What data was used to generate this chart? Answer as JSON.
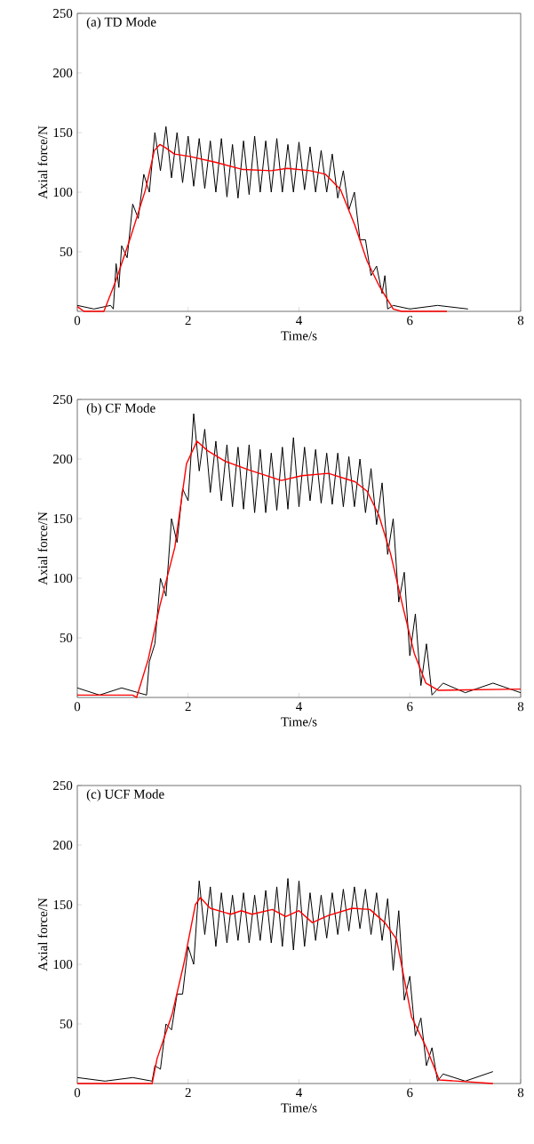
{
  "chart_data": [
    {
      "type": "line",
      "title": "(a) TD Mode",
      "xlabel": "Time/s",
      "ylabel": "Axial force/N",
      "xlim": [
        0,
        8
      ],
      "ylim": [
        0,
        250
      ],
      "xticks": [
        0,
        2,
        4,
        6,
        8
      ],
      "yticks": [
        50,
        100,
        150,
        200,
        250
      ],
      "series": [
        {
          "color": "#000000",
          "x": [
            0,
            0.3,
            0.6,
            0.65,
            0.7,
            0.75,
            0.8,
            0.9,
            1.0,
            1.1,
            1.2,
            1.3,
            1.4,
            1.5,
            1.6,
            1.7,
            1.8,
            1.9,
            2.0,
            2.1,
            2.2,
            2.3,
            2.4,
            2.5,
            2.6,
            2.7,
            2.8,
            2.9,
            3.0,
            3.1,
            3.2,
            3.3,
            3.4,
            3.5,
            3.6,
            3.7,
            3.8,
            3.9,
            4.0,
            4.1,
            4.2,
            4.3,
            4.4,
            4.5,
            4.6,
            4.7,
            4.8,
            4.9,
            5.0,
            5.1,
            5.2,
            5.3,
            5.4,
            5.5,
            5.55,
            5.6,
            5.7,
            6.0,
            6.5,
            7.05
          ],
          "values": [
            5,
            2,
            5,
            2,
            40,
            20,
            55,
            45,
            90,
            78,
            115,
            100,
            150,
            118,
            155,
            112,
            150,
            108,
            147,
            105,
            145,
            103,
            143,
            100,
            145,
            96,
            140,
            95,
            143,
            98,
            147,
            100,
            143,
            100,
            145,
            100,
            140,
            100,
            142,
            102,
            138,
            100,
            135,
            100,
            132,
            95,
            118,
            85,
            100,
            60,
            60,
            30,
            38,
            15,
            30,
            2,
            5,
            2,
            5,
            2
          ]
        },
        {
          "color": "#ff0000",
          "x": [
            0,
            0.12,
            0.48,
            0.69,
            0.96,
            1.23,
            1.39,
            1.49,
            1.6,
            1.75,
            2.03,
            2.5,
            2.99,
            3.5,
            3.79,
            4.2,
            4.48,
            4.75,
            5.01,
            5.23,
            5.44,
            5.7,
            5.85,
            6.67
          ],
          "values": [
            4,
            0,
            0,
            25,
            62,
            102,
            135,
            140,
            137,
            132,
            130,
            125,
            119,
            118,
            120,
            118,
            115,
            102,
            72,
            42,
            22,
            2,
            0,
            0
          ]
        }
      ]
    },
    {
      "type": "line",
      "title": "(b) CF Mode",
      "xlabel": "Time/s",
      "ylabel": "Axial force/N",
      "xlim": [
        0,
        8
      ],
      "ylim": [
        0,
        250
      ],
      "xticks": [
        0,
        2,
        4,
        6,
        8
      ],
      "yticks": [
        50,
        100,
        150,
        200,
        250
      ],
      "series": [
        {
          "color": "#000000",
          "x": [
            0,
            0.4,
            0.8,
            1.25,
            1.3,
            1.4,
            1.5,
            1.6,
            1.7,
            1.8,
            1.9,
            2.0,
            2.1,
            2.2,
            2.3,
            2.4,
            2.5,
            2.6,
            2.7,
            2.8,
            2.9,
            3.0,
            3.1,
            3.2,
            3.3,
            3.4,
            3.5,
            3.6,
            3.7,
            3.8,
            3.9,
            4.0,
            4.1,
            4.2,
            4.3,
            4.4,
            4.5,
            4.6,
            4.7,
            4.8,
            4.9,
            5.0,
            5.1,
            5.2,
            5.3,
            5.4,
            5.5,
            5.6,
            5.7,
            5.8,
            5.9,
            6.0,
            6.1,
            6.2,
            6.3,
            6.4,
            6.6,
            7.0,
            7.5,
            8
          ],
          "values": [
            8,
            2,
            8,
            2,
            30,
            45,
            100,
            85,
            150,
            130,
            175,
            165,
            238,
            190,
            225,
            172,
            215,
            165,
            212,
            160,
            210,
            158,
            212,
            155,
            208,
            155,
            205,
            157,
            210,
            158,
            218,
            160,
            210,
            165,
            208,
            163,
            205,
            162,
            205,
            160,
            202,
            160,
            200,
            155,
            192,
            145,
            180,
            120,
            150,
            80,
            105,
            35,
            70,
            10,
            45,
            2,
            12,
            4,
            12,
            4
          ]
        },
        {
          "color": "#ff0000",
          "x": [
            0,
            1.0,
            1.07,
            1.28,
            1.49,
            1.76,
            1.97,
            2.16,
            2.35,
            2.67,
            3.09,
            3.68,
            4.05,
            4.53,
            5.01,
            5.23,
            5.44,
            5.65,
            5.87,
            6.08,
            6.29,
            6.51,
            8
          ],
          "values": [
            2,
            2,
            0,
            32,
            77,
            126,
            196,
            215,
            207,
            198,
            191,
            182,
            186,
            188,
            181,
            173,
            153,
            121,
            77,
            37,
            12,
            6,
            7
          ]
        }
      ]
    },
    {
      "type": "line",
      "title": "(c) UCF Mode",
      "xlabel": "Time/s",
      "ylabel": "Axial force/N",
      "xlim": [
        0,
        8
      ],
      "ylim": [
        0,
        250
      ],
      "xticks": [
        0,
        2,
        4,
        6,
        8
      ],
      "yticks": [
        50,
        100,
        150,
        200,
        250
      ],
      "series": [
        {
          "color": "#000000",
          "x": [
            0,
            0.5,
            1.0,
            1.35,
            1.4,
            1.5,
            1.6,
            1.7,
            1.8,
            1.9,
            2.0,
            2.1,
            2.2,
            2.3,
            2.4,
            2.5,
            2.6,
            2.7,
            2.8,
            2.9,
            3.0,
            3.1,
            3.2,
            3.3,
            3.4,
            3.5,
            3.6,
            3.7,
            3.8,
            3.9,
            4.0,
            4.1,
            4.2,
            4.3,
            4.4,
            4.5,
            4.6,
            4.7,
            4.8,
            4.9,
            5.0,
            5.1,
            5.2,
            5.3,
            5.4,
            5.5,
            5.6,
            5.7,
            5.8,
            5.9,
            6.0,
            6.1,
            6.2,
            6.3,
            6.4,
            6.5,
            6.6,
            7.0,
            7.5
          ],
          "values": [
            5,
            2,
            5,
            2,
            15,
            12,
            50,
            45,
            75,
            75,
            115,
            100,
            170,
            125,
            165,
            115,
            160,
            118,
            158,
            120,
            160,
            118,
            158,
            120,
            162,
            118,
            165,
            115,
            172,
            112,
            170,
            115,
            160,
            120,
            158,
            122,
            160,
            125,
            163,
            128,
            165,
            130,
            163,
            125,
            160,
            120,
            155,
            95,
            145,
            70,
            90,
            40,
            55,
            15,
            30,
            2,
            8,
            2,
            10
          ]
        },
        {
          "color": "#ff0000",
          "x": [
            0,
            1.35,
            1.44,
            1.71,
            1.92,
            2.13,
            2.22,
            2.4,
            2.77,
            2.96,
            3.15,
            3.52,
            3.76,
            4.0,
            4.24,
            4.53,
            4.96,
            5.28,
            5.55,
            5.76,
            5.92,
            6.03,
            6.29,
            6.53,
            7.5
          ],
          "values": [
            0,
            0,
            21,
            58,
            100,
            150,
            156,
            147,
            142,
            145,
            142,
            146,
            140,
            145,
            135,
            141,
            147,
            146,
            135,
            121,
            83,
            56,
            31,
            3,
            0
          ]
        }
      ]
    }
  ]
}
